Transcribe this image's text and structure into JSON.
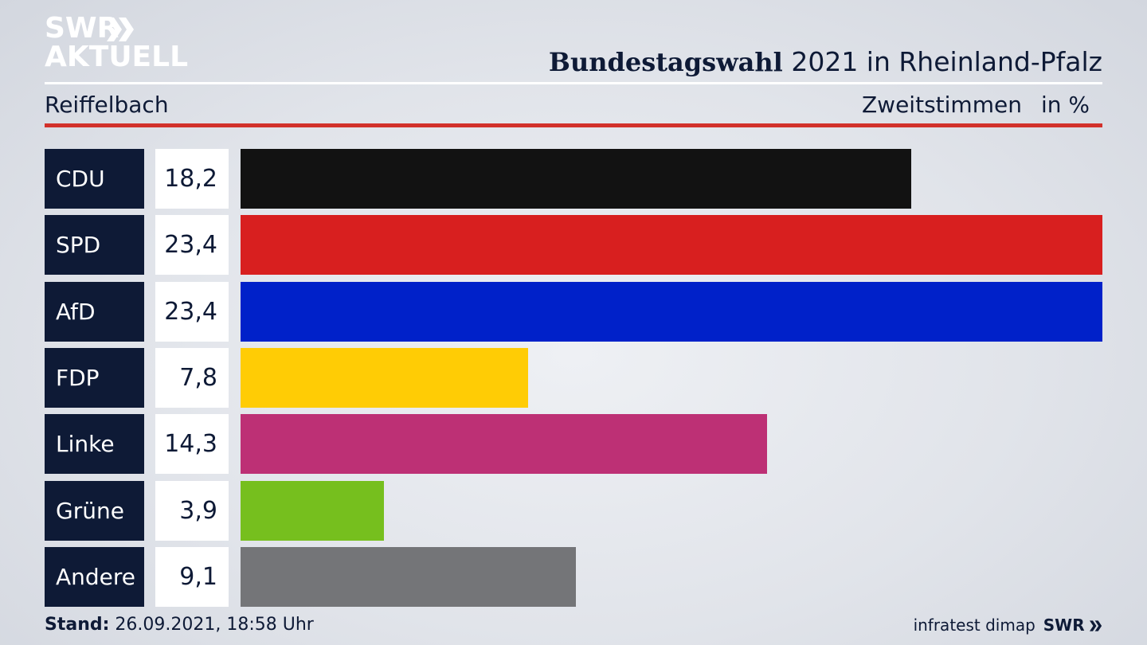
{
  "logo": {
    "line1": "SWR",
    "line2": "AKTUELL"
  },
  "header": {
    "title_bold": "Bundestagswahl",
    "title_rest": "2021 in Rheinland-Pfalz",
    "location": "Reiffelbach",
    "vote_type": "Zweitstimmen",
    "unit": "in %"
  },
  "chart_data": {
    "type": "bar",
    "orientation": "horizontal",
    "categories": [
      "CDU",
      "SPD",
      "AfD",
      "FDP",
      "Linke",
      "Grüne",
      "Andere"
    ],
    "value_labels": [
      "18,2",
      "23,4",
      "23,4",
      "7,8",
      "14,3",
      "3,9",
      "9,1"
    ],
    "values": [
      18.2,
      23.4,
      23.4,
      7.8,
      14.3,
      3.9,
      9.1
    ],
    "colors": [
      "#121212",
      "#d81f1f",
      "#0021c9",
      "#ffcc05",
      "#bd3075",
      "#76bf1e",
      "#747578"
    ],
    "xlim": [
      0,
      23.4
    ]
  },
  "footer": {
    "stand_label": "Stand:",
    "stand_value": "26.09.2021, 18:58 Uhr",
    "source": "infratest dimap",
    "brand": "SWR"
  }
}
